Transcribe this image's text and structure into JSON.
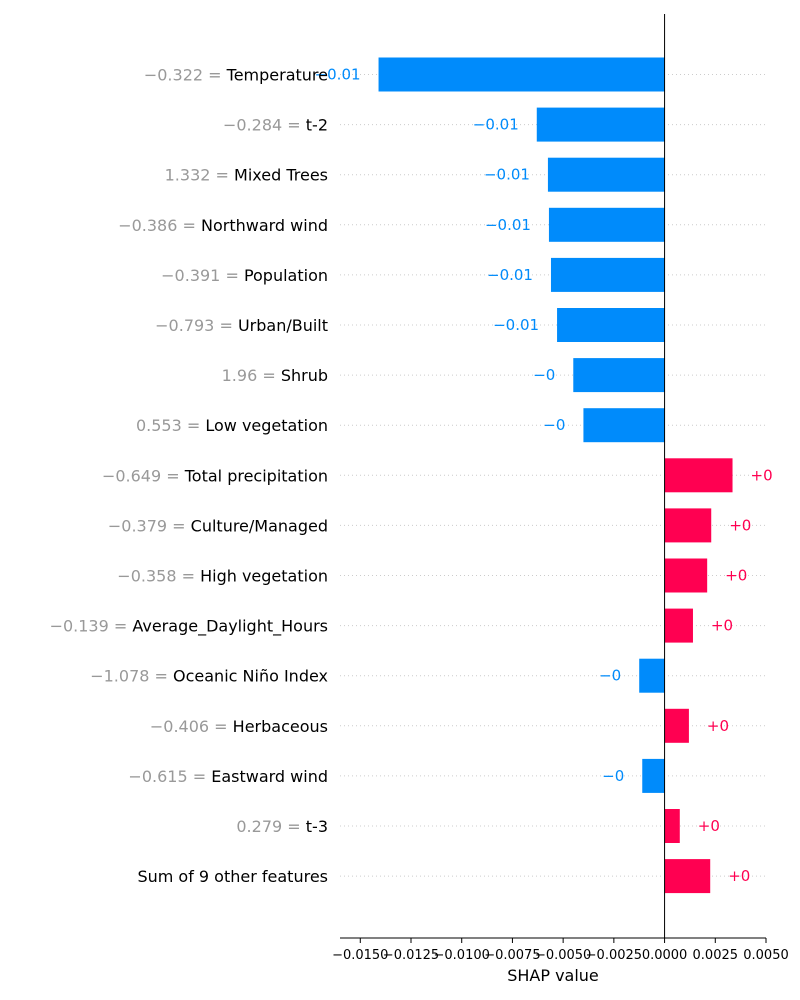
{
  "chart_data": {
    "type": "bar",
    "orientation": "horizontal",
    "title": "",
    "xlabel": "SHAP value",
    "ylabel": "",
    "xlim": [
      -0.016,
      0.005
    ],
    "x_ticks": [
      -0.015,
      -0.0125,
      -0.01,
      -0.0075,
      -0.005,
      -0.0025,
      0.0,
      0.0025,
      0.005
    ],
    "x_tick_labels": [
      "−0.0150",
      "−0.0125",
      "−0.0100",
      "−0.0075",
      "−0.0050",
      "−0.0025",
      "0.0000",
      "0.0025",
      "0.0050"
    ],
    "colors": {
      "positive": "#ff0051",
      "negative": "#008bfb",
      "feature_value": "#999999"
    },
    "features": [
      {
        "value_label": "−0.322",
        "name": "Temperature",
        "shap": -0.0141,
        "label": "−0.01"
      },
      {
        "value_label": "−0.284",
        "name": "t-2",
        "shap": -0.0063,
        "label": "−0.01"
      },
      {
        "value_label": "1.332",
        "name": "Mixed Trees",
        "shap": -0.00575,
        "label": "−0.01"
      },
      {
        "value_label": "−0.386",
        "name": "Northward wind",
        "shap": -0.0057,
        "label": "−0.01"
      },
      {
        "value_label": "−0.391",
        "name": "Population",
        "shap": -0.0056,
        "label": "−0.01"
      },
      {
        "value_label": "−0.793",
        "name": "Urban/Built",
        "shap": -0.0053,
        "label": "−0.01"
      },
      {
        "value_label": "1.96",
        "name": "Shrub",
        "shap": -0.0045,
        "label": "−0"
      },
      {
        "value_label": "0.553",
        "name": "Low vegetation",
        "shap": -0.004,
        "label": "−0"
      },
      {
        "value_label": "−0.649",
        "name": "Total precipitation",
        "shap": 0.00335,
        "label": "+0"
      },
      {
        "value_label": "−0.379",
        "name": "Culture/Managed",
        "shap": 0.0023,
        "label": "+0"
      },
      {
        "value_label": "−0.358",
        "name": "High vegetation",
        "shap": 0.0021,
        "label": "+0"
      },
      {
        "value_label": "−0.139",
        "name": "Average_Daylight_Hours",
        "shap": 0.0014,
        "label": "+0"
      },
      {
        "value_label": "−1.078",
        "name": "Oceanic Niño Index",
        "shap": -0.00125,
        "label": "−0"
      },
      {
        "value_label": "−0.406",
        "name": "Herbaceous",
        "shap": 0.0012,
        "label": "+0"
      },
      {
        "value_label": "−0.615",
        "name": "Eastward wind",
        "shap": -0.0011,
        "label": "−0"
      },
      {
        "value_label": "0.279",
        "name": "t-3",
        "shap": 0.00075,
        "label": "+0"
      },
      {
        "value_label": "",
        "name": "Sum of 9 other features",
        "shap": 0.00225,
        "label": "+0"
      }
    ]
  }
}
